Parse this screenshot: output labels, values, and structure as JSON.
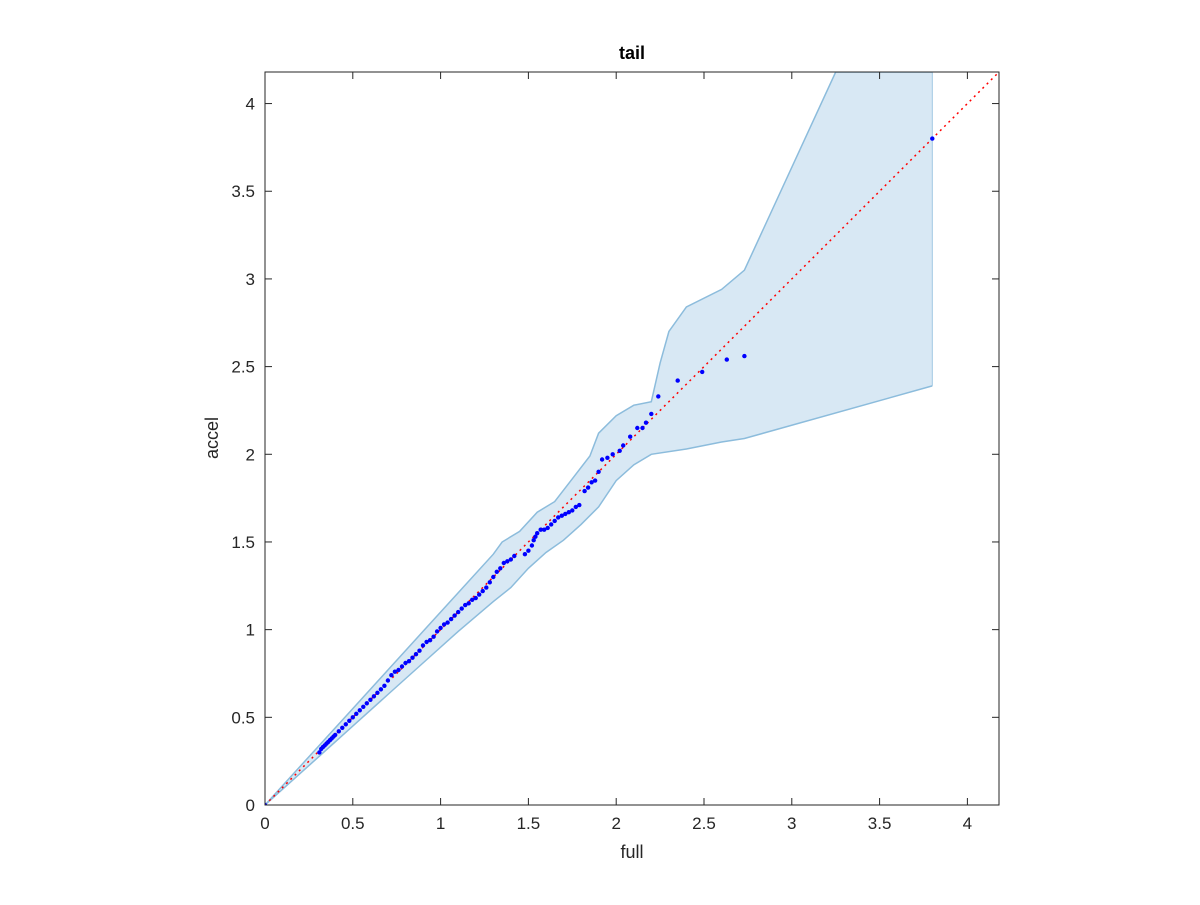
{
  "chart_data": {
    "type": "scatter",
    "title": "tail",
    "xlabel": "full",
    "ylabel": "accel",
    "xlim": [
      0,
      4.18
    ],
    "ylim": [
      0,
      4.18
    ],
    "x_ticks": [
      0,
      0.5,
      1,
      1.5,
      2,
      2.5,
      3,
      3.5,
      4
    ],
    "x_tick_labels": [
      "0",
      "0.5",
      "1",
      "1.5",
      "2",
      "2.5",
      "3",
      "3.5",
      "4"
    ],
    "y_ticks": [
      0,
      0.5,
      1,
      1.5,
      2,
      2.5,
      3,
      3.5,
      4
    ],
    "y_tick_labels": [
      "0",
      "0.5",
      "1",
      "1.5",
      "2",
      "2.5",
      "3",
      "3.5",
      "4"
    ],
    "grid": false,
    "colors": {
      "points": "#0000ff",
      "reference_line": "#ff0000",
      "band_fill": "#d8e8f4",
      "band_edge": "#8cbcdc",
      "axes": "#262626"
    },
    "reference_line": {
      "x": [
        0,
        4.18
      ],
      "y": [
        0,
        4.18
      ],
      "style": "dotted"
    },
    "confidence_band": {
      "upper": [
        [
          0,
          0
        ],
        [
          0.3,
          0.33
        ],
        [
          0.5,
          0.55
        ],
        [
          0.7,
          0.77
        ],
        [
          0.9,
          0.99
        ],
        [
          1.1,
          1.21
        ],
        [
          1.3,
          1.43
        ],
        [
          1.35,
          1.5
        ],
        [
          1.45,
          1.56
        ],
        [
          1.55,
          1.67
        ],
        [
          1.65,
          1.73
        ],
        [
          1.75,
          1.86
        ],
        [
          1.85,
          1.99
        ],
        [
          1.9,
          2.12
        ],
        [
          2.0,
          2.22
        ],
        [
          2.1,
          2.28
        ],
        [
          2.2,
          2.3
        ],
        [
          2.25,
          2.52
        ],
        [
          2.3,
          2.7
        ],
        [
          2.4,
          2.84
        ],
        [
          2.6,
          2.94
        ],
        [
          2.73,
          3.05
        ],
        [
          3.25,
          4.18
        ],
        [
          3.8,
          4.18
        ]
      ],
      "lower": [
        [
          0,
          0
        ],
        [
          0.3,
          0.27
        ],
        [
          0.5,
          0.45
        ],
        [
          0.7,
          0.63
        ],
        [
          0.9,
          0.81
        ],
        [
          1.1,
          0.99
        ],
        [
          1.3,
          1.16
        ],
        [
          1.4,
          1.24
        ],
        [
          1.5,
          1.35
        ],
        [
          1.6,
          1.44
        ],
        [
          1.7,
          1.51
        ],
        [
          1.8,
          1.6
        ],
        [
          1.9,
          1.7
        ],
        [
          2.0,
          1.85
        ],
        [
          2.1,
          1.94
        ],
        [
          2.2,
          2.0
        ],
        [
          2.4,
          2.03
        ],
        [
          2.6,
          2.07
        ],
        [
          2.73,
          2.09
        ],
        [
          3.8,
          2.39
        ]
      ]
    },
    "series": [
      {
        "x": [
          0,
          0.31,
          0.32,
          0.33,
          0.34,
          0.35,
          0.36,
          0.37,
          0.38,
          0.39,
          0.4,
          0.42,
          0.44,
          0.46,
          0.48,
          0.5,
          0.52,
          0.54,
          0.56,
          0.58,
          0.6,
          0.62,
          0.64,
          0.66,
          0.68,
          0.7,
          0.72,
          0.74,
          0.76,
          0.78,
          0.8,
          0.82,
          0.84,
          0.86,
          0.88,
          0.9,
          0.92,
          0.94,
          0.96,
          0.98,
          1.0,
          1.02,
          1.04,
          1.06,
          1.08,
          1.1,
          1.12,
          1.14,
          1.16,
          1.18,
          1.2,
          1.22,
          1.24,
          1.26,
          1.28,
          1.3,
          1.32,
          1.34,
          1.36,
          1.38,
          1.4,
          1.42,
          1.48,
          1.5,
          1.52,
          1.53,
          1.54,
          1.55,
          1.57,
          1.59,
          1.61,
          1.63,
          1.65,
          1.67,
          1.69,
          1.71,
          1.73,
          1.75,
          1.77,
          1.79,
          1.82,
          1.84,
          1.86,
          1.88,
          1.9,
          1.92,
          1.95,
          1.98,
          2.02,
          2.04,
          2.08,
          2.12,
          2.15,
          2.17,
          2.2,
          2.24,
          2.35,
          2.49,
          2.63,
          2.73,
          3.8
        ],
        "y": [
          0,
          0.3,
          0.32,
          0.33,
          0.34,
          0.35,
          0.36,
          0.37,
          0.38,
          0.39,
          0.4,
          0.42,
          0.44,
          0.46,
          0.48,
          0.5,
          0.52,
          0.54,
          0.56,
          0.58,
          0.6,
          0.62,
          0.64,
          0.66,
          0.68,
          0.71,
          0.74,
          0.76,
          0.77,
          0.79,
          0.81,
          0.82,
          0.84,
          0.86,
          0.88,
          0.91,
          0.93,
          0.94,
          0.96,
          0.99,
          1.01,
          1.03,
          1.04,
          1.06,
          1.08,
          1.1,
          1.12,
          1.14,
          1.15,
          1.17,
          1.18,
          1.2,
          1.22,
          1.24,
          1.27,
          1.3,
          1.33,
          1.35,
          1.38,
          1.39,
          1.4,
          1.42,
          1.43,
          1.45,
          1.48,
          1.51,
          1.53,
          1.55,
          1.57,
          1.57,
          1.58,
          1.6,
          1.62,
          1.64,
          1.65,
          1.66,
          1.67,
          1.68,
          1.7,
          1.71,
          1.79,
          1.81,
          1.84,
          1.85,
          1.9,
          1.97,
          1.98,
          2.0,
          2.02,
          2.05,
          2.1,
          2.15,
          2.15,
          2.18,
          2.23,
          2.33,
          2.42,
          2.47,
          2.54,
          2.56,
          3.8
        ]
      }
    ]
  }
}
